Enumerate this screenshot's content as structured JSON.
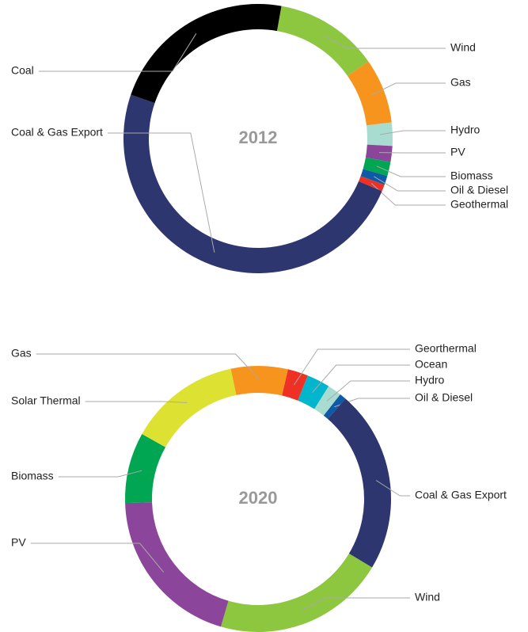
{
  "chart_data": [
    {
      "type": "donut",
      "title": "2012",
      "categories": [
        "Wind",
        "Gas",
        "Hydro",
        "PV",
        "Biomass",
        "Oil & Diesel",
        "Geothermal",
        "Coal & Gas Export",
        "Coal"
      ],
      "values": [
        12.5,
        7.8,
        2.8,
        1.9,
        1.7,
        1.1,
        0.8,
        48.9,
        22.5
      ],
      "colors": [
        "#8dc63f",
        "#f7941d",
        "#a8dcd1",
        "#8b459a",
        "#00a651",
        "#0d5aa7",
        "#ee3124",
        "#2e3670",
        "#000000"
      ]
    },
    {
      "type": "donut",
      "title": "2020",
      "categories": [
        "Georthermal",
        "Ocean",
        "Hydro",
        "Oil & Diesel",
        "Coal & Gas Export",
        "Wind",
        "PV",
        "Biomass",
        "Solar Thermal",
        "Gas"
      ],
      "values": [
        2.5,
        2.8,
        1.7,
        0.8,
        22.2,
        20.9,
        20,
        8.6,
        13.6,
        6.9
      ],
      "colors": [
        "#ee3124",
        "#00b5cc",
        "#a8dcd1",
        "#0d5aa7",
        "#2e3670",
        "#8dc63f",
        "#8b459a",
        "#00a651",
        "#dde232",
        "#f7941d"
      ]
    }
  ]
}
